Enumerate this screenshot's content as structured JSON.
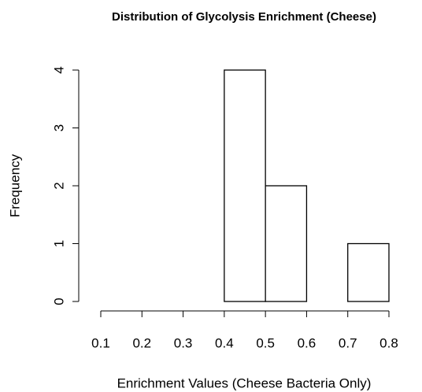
{
  "chart_data": {
    "type": "histogram",
    "title": "Distribution of Glycolysis Enrichment (Cheese)",
    "x_label": "Enrichment Values (Cheese Bacteria Only)",
    "y_label": "Frequency",
    "bins": [
      0.1,
      0.2,
      0.3,
      0.4,
      0.5,
      0.6,
      0.7,
      0.8
    ],
    "values": [
      0,
      0,
      0,
      4,
      2,
      0,
      1
    ],
    "color": "#ffffff",
    "edge_color": "#000000",
    "xlim": [
      0.1,
      0.8
    ],
    "xticks": [
      0.1,
      0.2,
      0.3,
      0.4,
      0.5,
      0.6,
      0.7,
      0.8
    ],
    "ylim": [
      0,
      4
    ],
    "yticks": [
      0,
      1,
      2,
      3,
      4
    ],
    "grid": false
  }
}
